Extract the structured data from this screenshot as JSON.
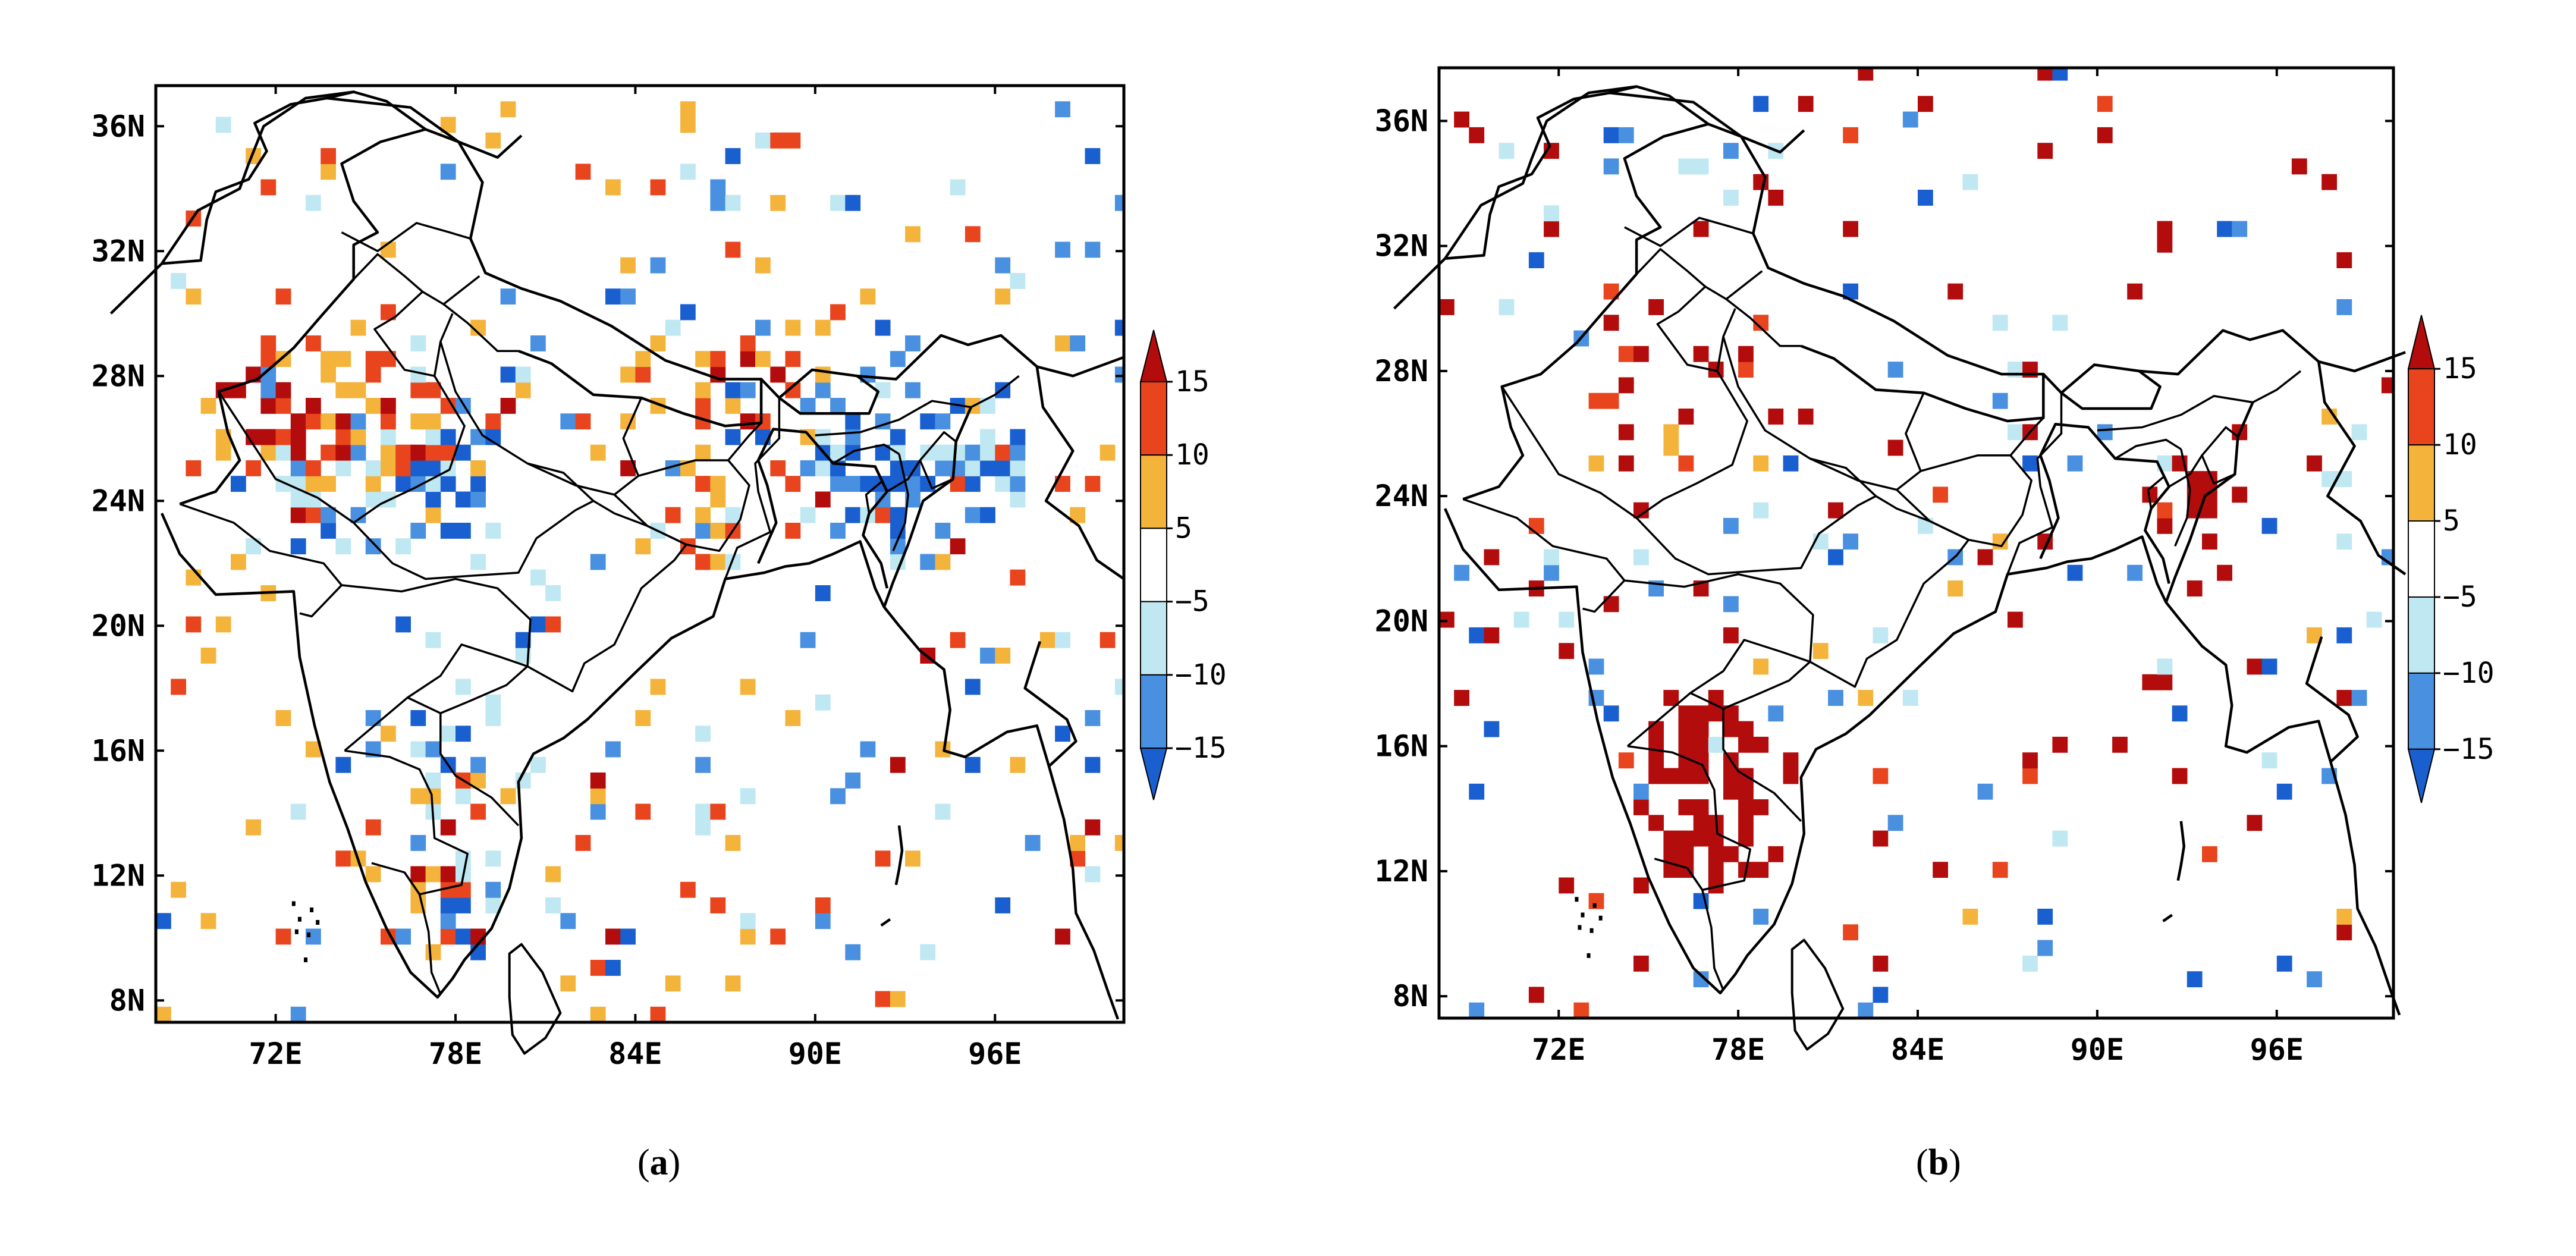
{
  "panels": [
    {
      "id": "a",
      "caption": "(a)",
      "caption_letter": "a",
      "lat_ticks": [
        "36N",
        "32N",
        "28N",
        "24N",
        "20N",
        "16N",
        "12N",
        "8N"
      ],
      "lon_ticks": [
        "72E",
        "78E",
        "84E",
        "90E",
        "96E"
      ],
      "colorbar_labels": [
        "15",
        "10",
        "5",
        "−5",
        "−10",
        "−15"
      ],
      "dominant": "mixed"
    },
    {
      "id": "b",
      "caption": "(b)",
      "caption_letter": "b",
      "lat_ticks": [
        "36N",
        "32N",
        "28N",
        "24N",
        "20N",
        "16N",
        "12N",
        "8N"
      ],
      "lon_ticks": [
        "72E",
        "78E",
        "84E",
        "90E",
        "96E"
      ],
      "colorbar_labels": [
        "15",
        "10",
        "5",
        "−5",
        "−10",
        "−15"
      ],
      "dominant": "red"
    }
  ],
  "colors": {
    "c15": "#b30c0c",
    "c10": "#e8451e",
    "c5": "#f4b43c",
    "cm5": "#bfe8f2",
    "cm10": "#4a90e0",
    "cm15": "#1a5fd0",
    "border": "#000000"
  }
}
